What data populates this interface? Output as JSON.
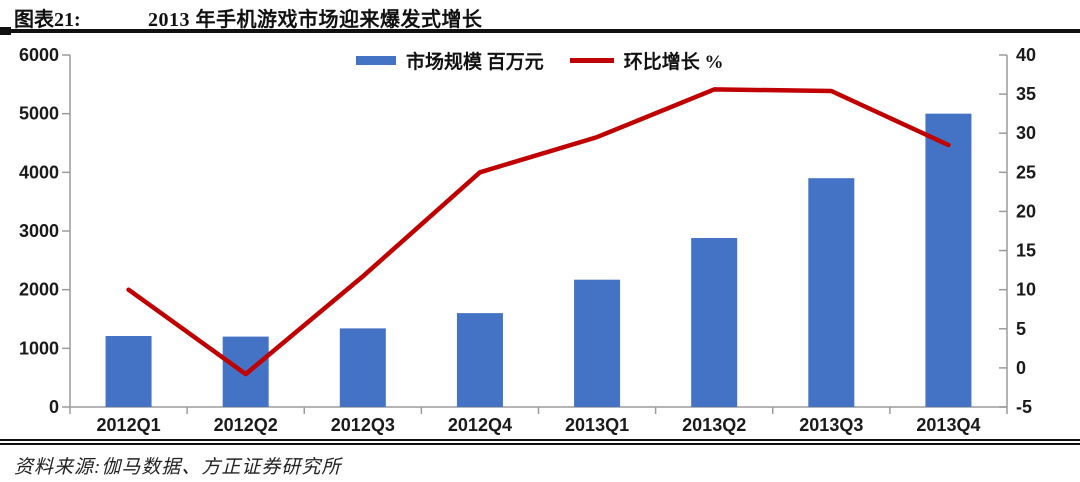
{
  "header": {
    "label": "图表21:",
    "title": "2013 年手机游戏市场迎来爆发式增长"
  },
  "footer": {
    "source": "资料来源:伽马数据、方正证券研究所"
  },
  "chart_data": {
    "type": "bar",
    "subtype": "bar+line combo, dual y-axes",
    "title": "2013 年手机游戏市场迎来爆发式增长",
    "categories": [
      "2012Q1",
      "2012Q2",
      "2012Q3",
      "2012Q4",
      "2013Q1",
      "2013Q2",
      "2013Q3",
      "2013Q4"
    ],
    "series": [
      {
        "name": "市场规模 百万元",
        "type": "bar",
        "axis": "left",
        "color": "#4472C4",
        "values": [
          1210,
          1200,
          1340,
          1600,
          2170,
          2880,
          3900,
          5000
        ]
      },
      {
        "name": "环比增长 %",
        "type": "line",
        "axis": "right",
        "color": "#C00000",
        "values": [
          10,
          -0.8,
          11.7,
          25,
          29.5,
          35.6,
          35.4,
          28.5
        ]
      }
    ],
    "left_axis": {
      "min": 0,
      "max": 6000,
      "ticks": [
        0,
        1000,
        2000,
        3000,
        4000,
        5000,
        6000
      ]
    },
    "right_axis": {
      "min": -5,
      "max": 40,
      "ticks": [
        -5,
        0,
        5,
        10,
        15,
        20,
        25,
        30,
        35,
        40
      ]
    },
    "grid": false,
    "legend_position": "top-center",
    "axis_color": "#9b9b9b"
  }
}
